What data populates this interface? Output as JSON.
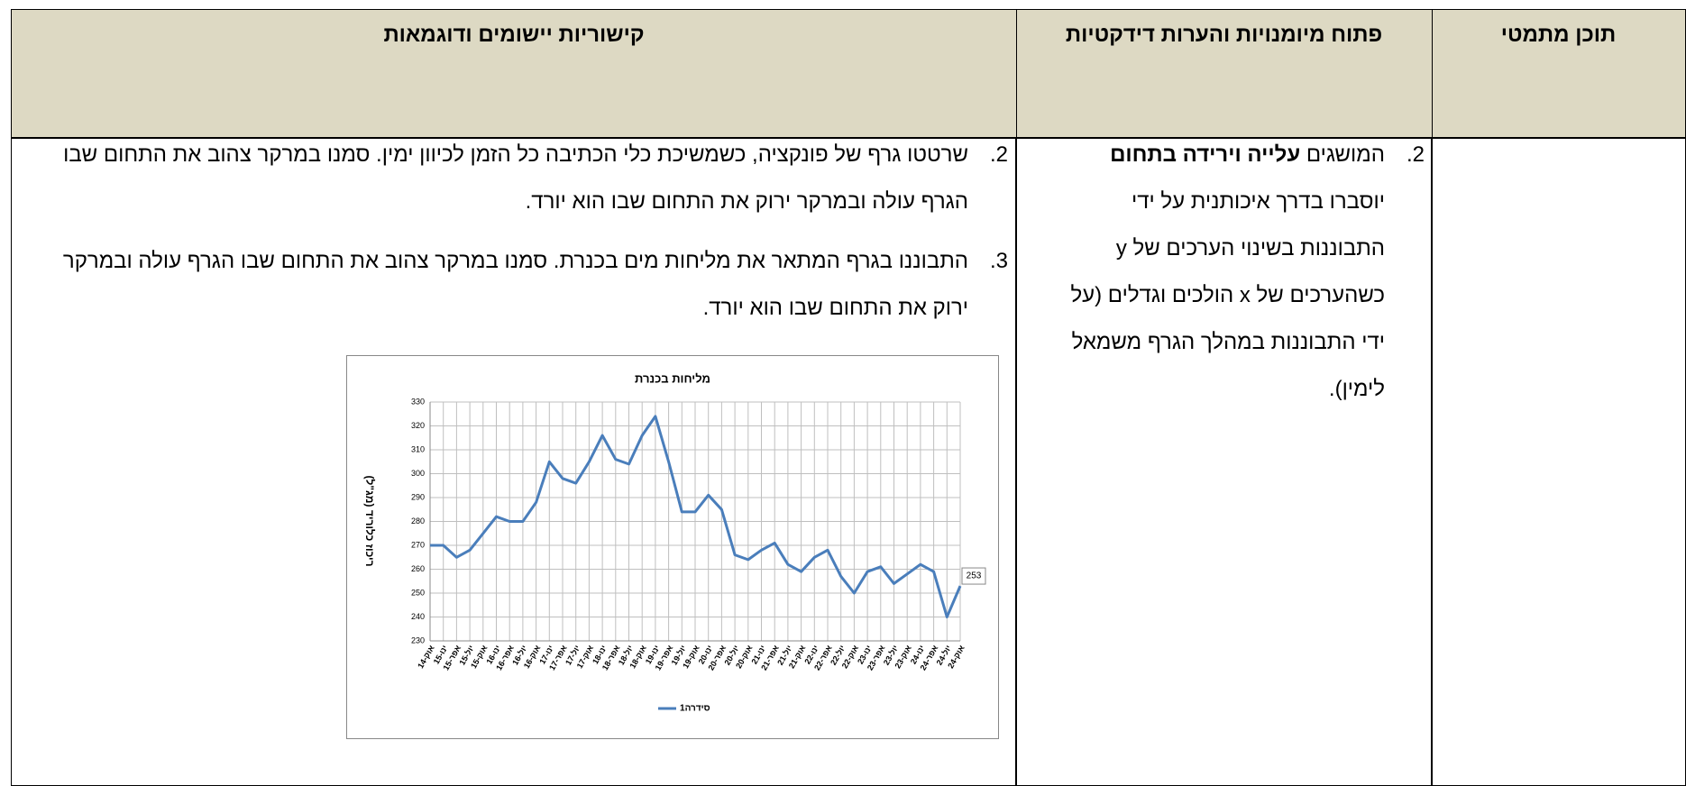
{
  "table": {
    "headers": [
      "תוכן מתמטי",
      "פתוח מיומנויות והערות דידקטיות",
      "קישוריות יישומים ודוגמאות"
    ]
  },
  "skills": {
    "items": [
      {
        "number": "2.",
        "text_before": "המושגים ",
        "bold": "עלייה וירידה בתחום",
        "text_after": " יוסברו בדרך איכותנית על ידי התבוננות בשינוי הערכים של y כשהערכים של x הולכים וגדלים (על ידי התבוננות במהלך הגרף משמאל לימין)."
      }
    ]
  },
  "applications": {
    "items": [
      {
        "number": "2.",
        "text": "שרטטו גרף של פונקציה, כשמשיכת כלי הכתיבה כל הזמן לכיוון ימין. סמנו במרקר צהוב את התחום שבו הגרף עולה ובמרקר ירוק את התחום שבו הוא יורד."
      },
      {
        "number": "3.",
        "text": "התבוננו בגרף המתאר את מליחות מים בכנרת. סמנו במרקר צהוב את התחום שבו הגרף עולה ובמרקר ירוק את התחום שבו הוא יורד."
      }
    ]
  },
  "chart_data": {
    "type": "line",
    "title": "מליחות בכנרת",
    "y_label": "ריכוז כלוריד (מג\"ל)",
    "categories": [
      "אוק-14",
      "ינו-15",
      "אפר-15",
      "יול-15",
      "אוק-15",
      "ינו-16",
      "אפר-16",
      "יול-16",
      "אוק-16",
      "ינו-17",
      "אפר-17",
      "יול-17",
      "אוק-17",
      "ינו-18",
      "אפר-18",
      "יול-18",
      "אוק-18",
      "ינו-19",
      "אפר-19",
      "יול-19",
      "אוק-19",
      "ינו-20",
      "אפר-20",
      "יול-20",
      "אוק-20",
      "ינו-21",
      "אפר-21",
      "יול-21",
      "אוק-21",
      "ינו-22",
      "אפר-22",
      "יול-22",
      "אוק-22",
      "ינו-23",
      "אפר-23",
      "יול-23",
      "אוק-23",
      "ינו-24",
      "אפר-24",
      "יול-24",
      "אוק-24"
    ],
    "series": [
      {
        "name": "סידרה1",
        "color": "#4a7ebb",
        "values": [
          270,
          270,
          265,
          268,
          275,
          282,
          280,
          280,
          288,
          305,
          298,
          296,
          305,
          316,
          306,
          304,
          316,
          324,
          305,
          284,
          284,
          291,
          285,
          266,
          264,
          268,
          271,
          262,
          259,
          265,
          268,
          257,
          250,
          259,
          261,
          254,
          258,
          262,
          259,
          240,
          253
        ]
      }
    ],
    "ylim": [
      230,
      330
    ],
    "yticks": [
      230,
      240,
      250,
      260,
      270,
      280,
      290,
      300,
      310,
      320,
      330
    ],
    "grid": true,
    "xgrid": true,
    "legend": "bottom"
  }
}
